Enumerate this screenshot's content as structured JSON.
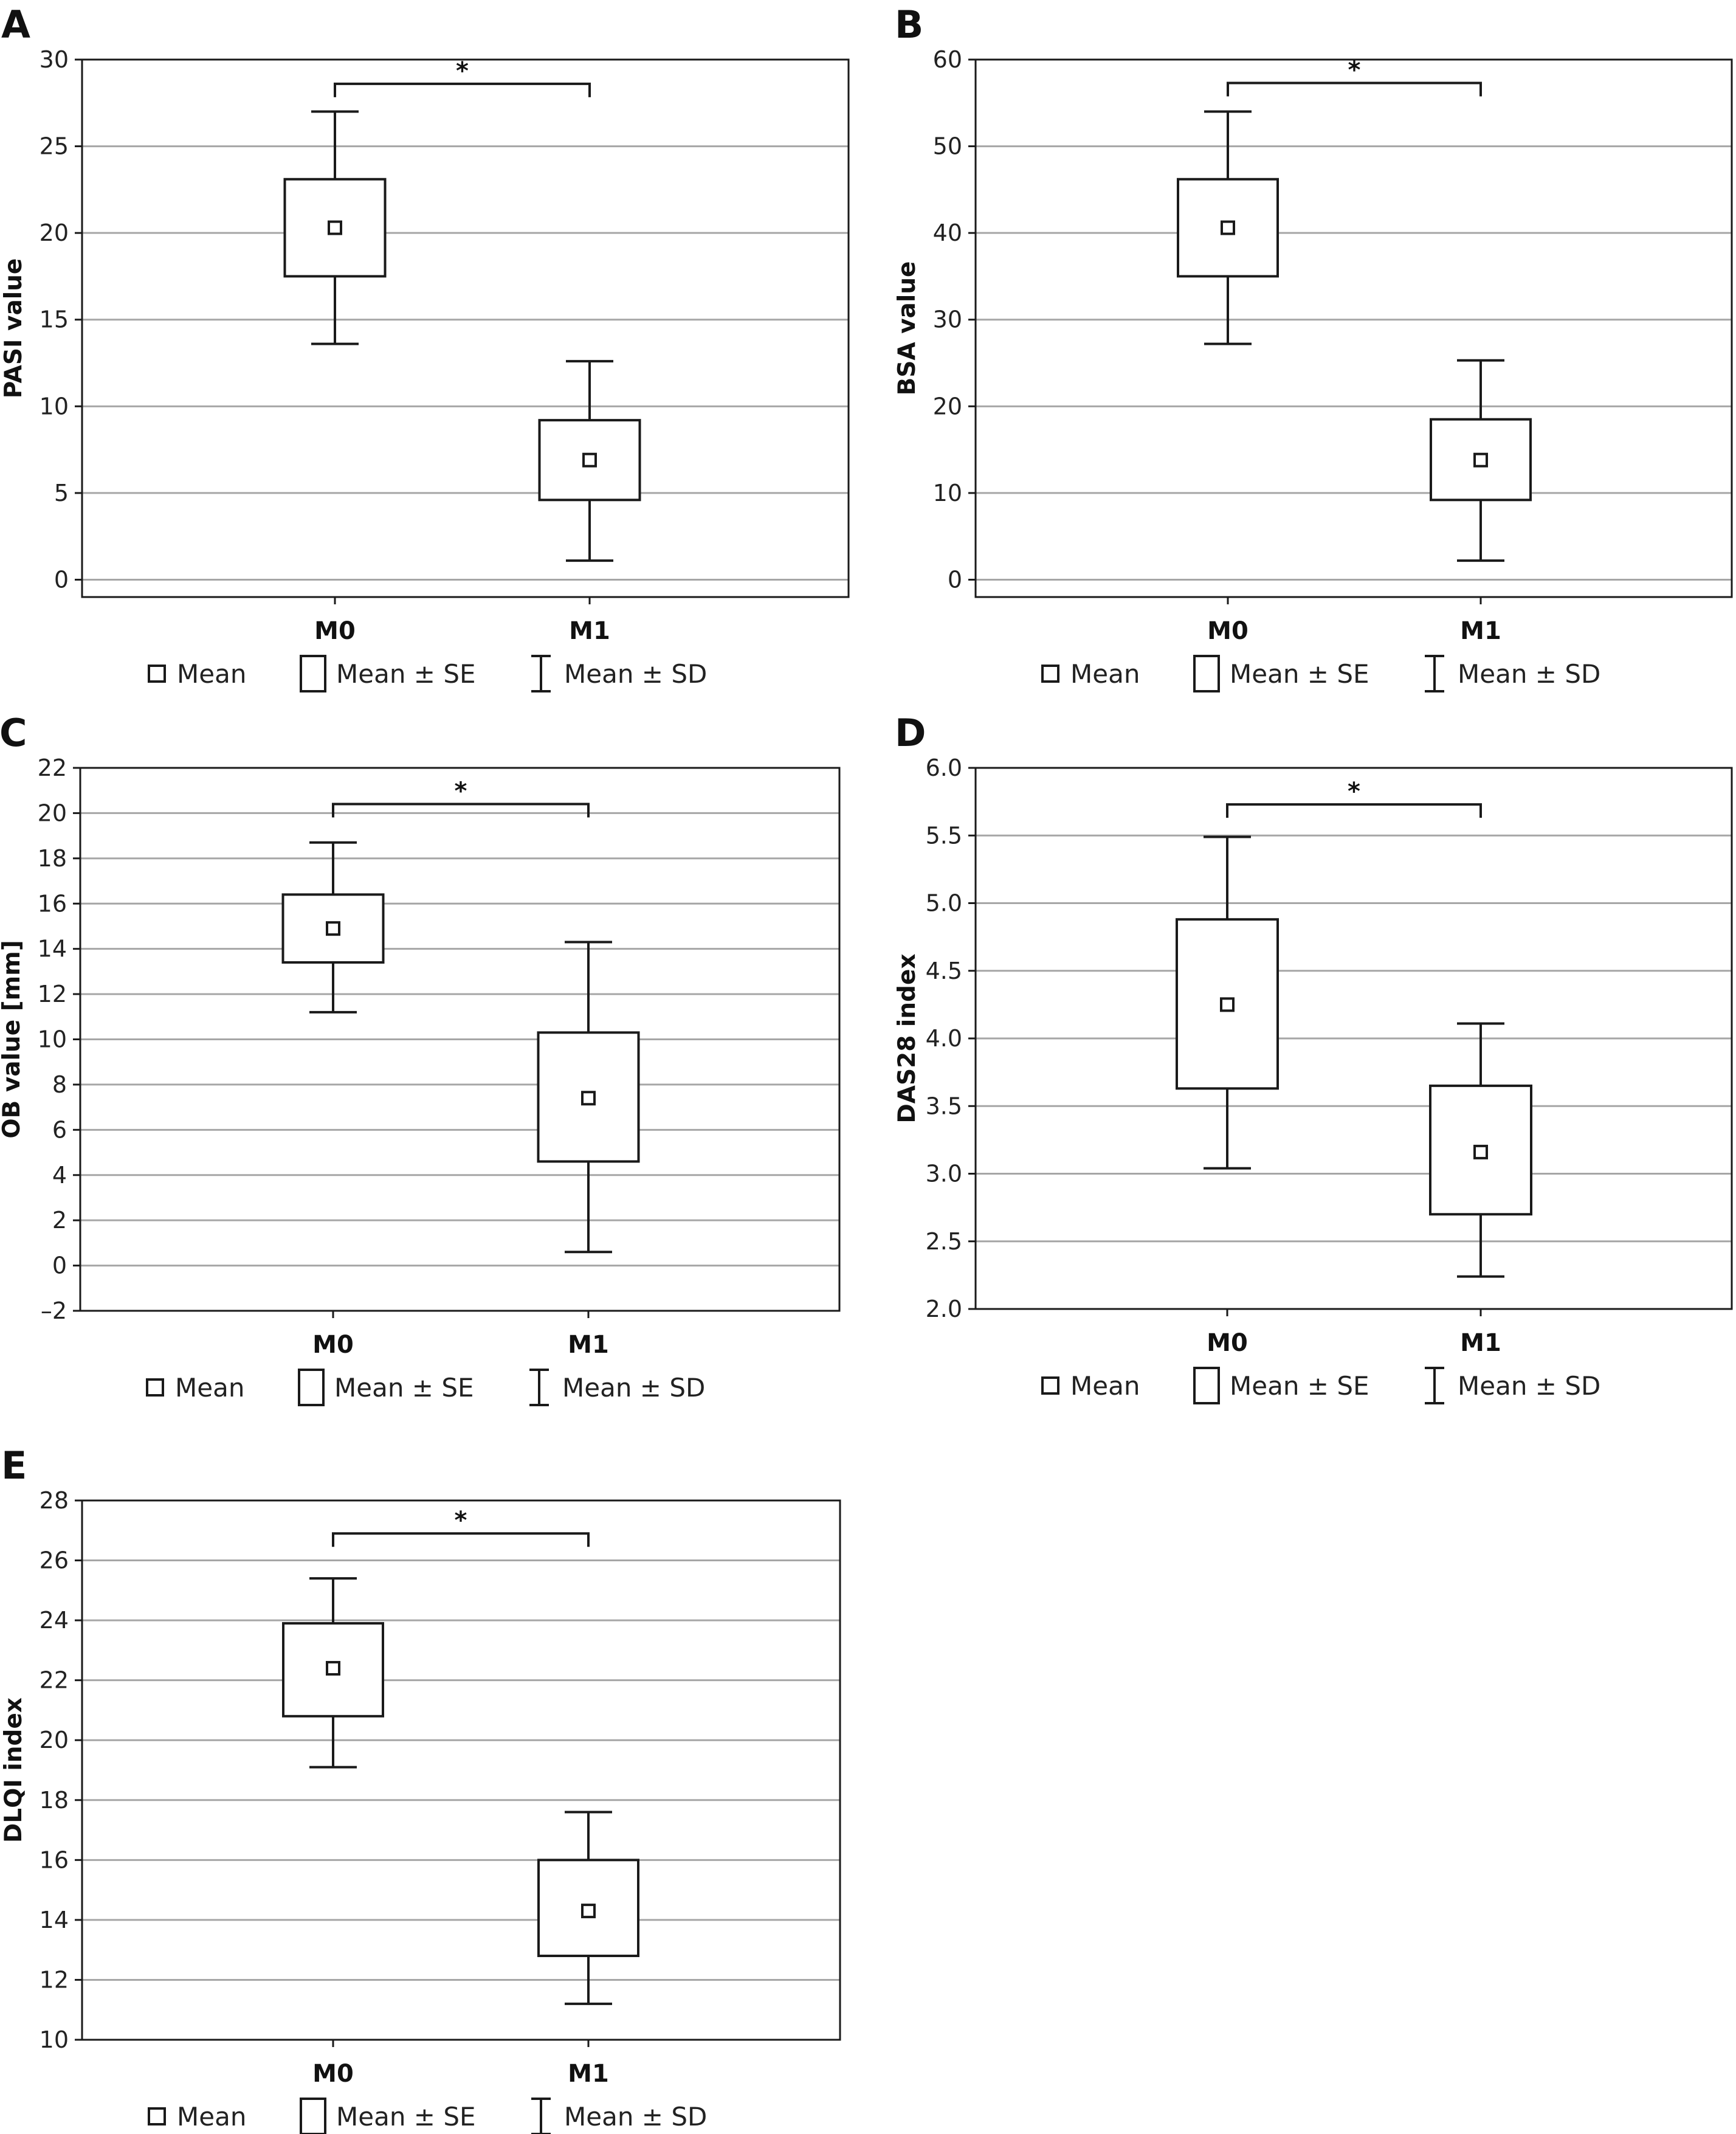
{
  "chart_data": [
    {
      "panel": "A",
      "type": "box",
      "ylabel": "PASI value",
      "ylim": [
        -1,
        30
      ],
      "yticks": [
        0,
        5,
        10,
        15,
        20,
        25,
        30
      ],
      "ytick_labels": [
        "0",
        "5",
        "10",
        "15",
        "20",
        "25",
        "30"
      ],
      "categories": [
        "M0",
        "M1"
      ],
      "groups": [
        {
          "category": "M0",
          "mean": 20.3,
          "se_low": 17.5,
          "se_high": 23.1,
          "sd_low": 13.6,
          "sd_high": 27.0
        },
        {
          "category": "M1",
          "mean": 6.9,
          "se_low": 4.6,
          "se_high": 9.2,
          "sd_low": 1.1,
          "sd_high": 12.6
        }
      ],
      "significance": {
        "from": "M0",
        "to": "M1",
        "label": "*",
        "y": 28.6
      },
      "grid": true,
      "legend": [
        "Mean",
        "Mean ± SE",
        "Mean ± SD"
      ]
    },
    {
      "panel": "B",
      "type": "box",
      "ylabel": "BSA value",
      "ylim": [
        -2,
        60
      ],
      "yticks": [
        0,
        10,
        20,
        30,
        40,
        50,
        60
      ],
      "ytick_labels": [
        "0",
        "10",
        "20",
        "30",
        "40",
        "50",
        "60"
      ],
      "categories": [
        "M0",
        "M1"
      ],
      "groups": [
        {
          "category": "M0",
          "mean": 40.6,
          "se_low": 35.0,
          "se_high": 46.2,
          "sd_low": 27.2,
          "sd_high": 54.0
        },
        {
          "category": "M1",
          "mean": 13.8,
          "se_low": 9.2,
          "se_high": 18.5,
          "sd_low": 2.2,
          "sd_high": 25.3
        }
      ],
      "significance": {
        "from": "M0",
        "to": "M1",
        "label": "*",
        "y": 57.3
      },
      "grid": true,
      "legend": [
        "Mean",
        "Mean ± SE",
        "Mean ± SD"
      ]
    },
    {
      "panel": "C",
      "type": "box",
      "ylabel": "OB value [mm]",
      "ylim": [
        -2,
        22
      ],
      "yticks": [
        -2,
        0,
        2,
        4,
        6,
        8,
        10,
        12,
        14,
        16,
        18,
        20,
        22
      ],
      "ytick_labels": [
        "–2",
        "0",
        "2",
        "4",
        "6",
        "8",
        "10",
        "12",
        "14",
        "16",
        "18",
        "20",
        "22"
      ],
      "categories": [
        "M0",
        "M1"
      ],
      "groups": [
        {
          "category": "M0",
          "mean": 14.9,
          "se_low": 13.4,
          "se_high": 16.4,
          "sd_low": 11.2,
          "sd_high": 18.7
        },
        {
          "category": "M1",
          "mean": 7.4,
          "se_low": 4.6,
          "se_high": 10.3,
          "sd_low": 0.6,
          "sd_high": 14.3
        }
      ],
      "significance": {
        "from": "M0",
        "to": "M1",
        "label": "*",
        "y": 20.4
      },
      "grid": true,
      "legend": [
        "Mean",
        "Mean ± SE",
        "Mean ± SD"
      ]
    },
    {
      "panel": "D",
      "type": "box",
      "ylabel": "DAS28 index",
      "ylim": [
        2.0,
        6.0
      ],
      "yticks": [
        2.0,
        2.5,
        3.0,
        3.5,
        4.0,
        4.5,
        5.0,
        5.5,
        6.0
      ],
      "ytick_labels": [
        "2.0",
        "2.5",
        "3.0",
        "3.5",
        "4.0",
        "4.5",
        "5.0",
        "5.5",
        "6.0"
      ],
      "categories": [
        "M0",
        "M1"
      ],
      "groups": [
        {
          "category": "M0",
          "mean": 4.25,
          "se_low": 3.63,
          "se_high": 4.88,
          "sd_low": 3.04,
          "sd_high": 5.49
        },
        {
          "category": "M1",
          "mean": 3.16,
          "se_low": 2.7,
          "se_high": 3.65,
          "sd_low": 2.24,
          "sd_high": 4.11
        }
      ],
      "significance": {
        "from": "M0",
        "to": "M1",
        "label": "*",
        "y": 5.73
      },
      "grid": true,
      "legend": [
        "Mean",
        "Mean ± SE",
        "Mean ± SD"
      ]
    },
    {
      "panel": "E",
      "type": "box",
      "ylabel": "DLQI index",
      "ylim": [
        10,
        28
      ],
      "yticks": [
        10,
        12,
        14,
        16,
        18,
        20,
        22,
        24,
        26,
        28
      ],
      "ytick_labels": [
        "10",
        "12",
        "14",
        "16",
        "18",
        "20",
        "22",
        "24",
        "26",
        "28"
      ],
      "categories": [
        "M0",
        "M1"
      ],
      "groups": [
        {
          "category": "M0",
          "mean": 22.4,
          "se_low": 20.8,
          "se_high": 23.9,
          "sd_low": 19.1,
          "sd_high": 25.4
        },
        {
          "category": "M1",
          "mean": 14.3,
          "se_low": 12.8,
          "se_high": 16.0,
          "sd_low": 11.2,
          "sd_high": 17.6
        }
      ],
      "significance": {
        "from": "M0",
        "to": "M1",
        "label": "*",
        "y": 26.9
      },
      "grid": true,
      "legend": [
        "Mean",
        "Mean ± SE",
        "Mean ± SD"
      ]
    }
  ],
  "colors": {
    "line": "#1a1a1a",
    "grid": "#a6a6a6",
    "background": "#ffffff"
  }
}
